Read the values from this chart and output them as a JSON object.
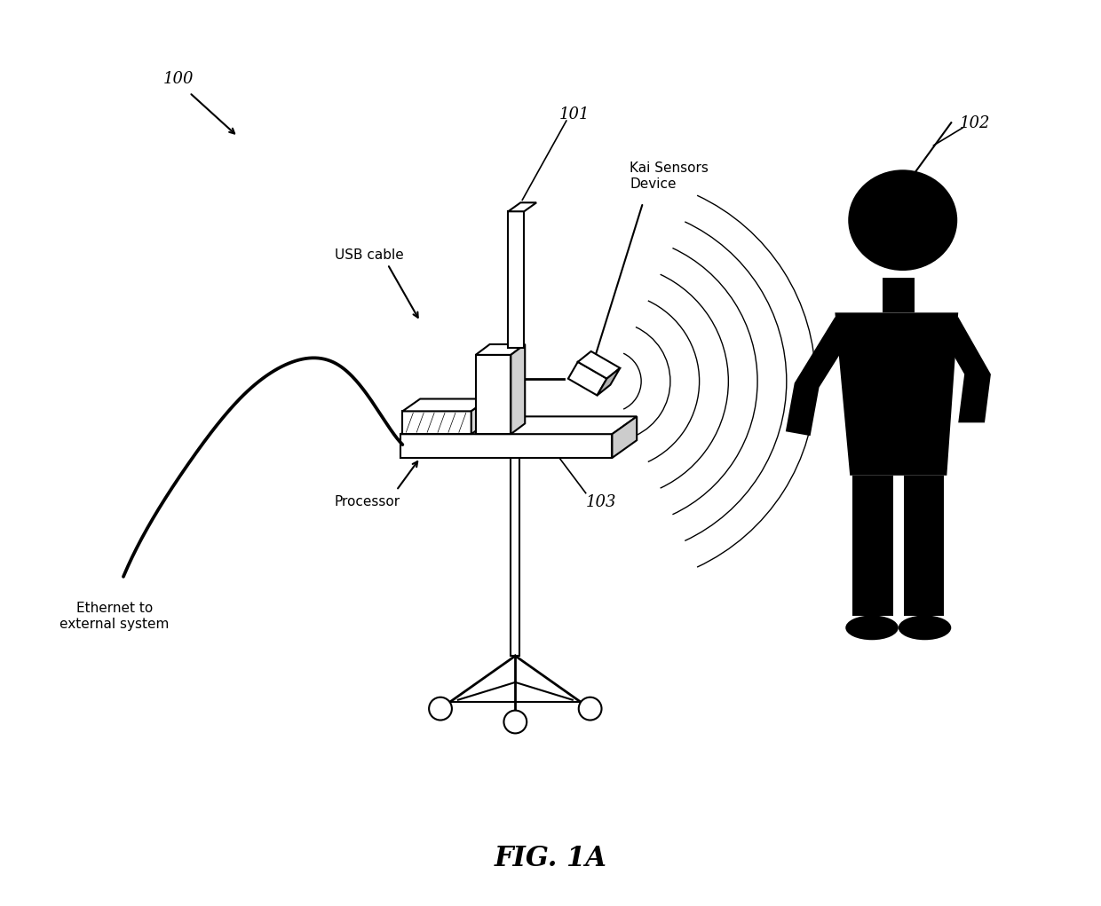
{
  "fig_label": "FIG. 1A",
  "bg_color": "#ffffff",
  "line_color": "#000000",
  "fill_color": "#000000",
  "labels": {
    "ref100": "100",
    "ref101": "101",
    "ref102": "102",
    "ref103": "103",
    "usb_cable": "USB cable",
    "kai_sensors": "Kai Sensors\nDevice",
    "processor": "Processor",
    "ethernet": "Ethernet to\nexternal system"
  },
  "figsize": [
    12.4,
    10.21
  ],
  "dpi": 100
}
